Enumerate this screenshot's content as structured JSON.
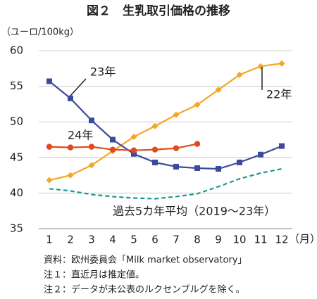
{
  "chart_data": {
    "type": "line",
    "title": "図２　生乳取引価格の推移",
    "y_label": "（ユーロ/100kg）",
    "x_label": "（月）",
    "categories": [
      "1",
      "2",
      "3",
      "4",
      "5",
      "6",
      "7",
      "8",
      "9",
      "10",
      "11",
      "12"
    ],
    "series": [
      {
        "name": "22年",
        "color": "#f5a623",
        "marker": "diamond",
        "dashed": false,
        "values": [
          41.8,
          42.5,
          43.9,
          45.9,
          47.9,
          49.4,
          51.0,
          52.4,
          54.5,
          56.6,
          57.8,
          58.2
        ]
      },
      {
        "name": "23年",
        "color": "#3a4a9c",
        "marker": "square",
        "dashed": false,
        "values": [
          55.7,
          53.3,
          50.2,
          47.5,
          45.5,
          44.3,
          43.7,
          43.5,
          43.4,
          44.3,
          45.4,
          46.6
        ]
      },
      {
        "name": "24年",
        "color": "#e04a1e",
        "marker": "circle",
        "dashed": false,
        "values": [
          46.5,
          46.4,
          46.5,
          46.1,
          46.0,
          46.1,
          46.3,
          46.9,
          null,
          null,
          null,
          null
        ]
      },
      {
        "name": "過去5カ年平均（2019～23年）",
        "color": "#17968f",
        "marker": "none",
        "dashed": true,
        "values": [
          40.6,
          40.3,
          39.8,
          39.5,
          39.3,
          39.2,
          39.5,
          39.9,
          40.9,
          42.0,
          42.8,
          43.4
        ]
      }
    ],
    "ylim": [
      35,
      60
    ],
    "yticks": [
      35,
      40,
      45,
      50,
      55,
      60
    ],
    "grid": true,
    "notes": [
      "資料：欧州委員会「Milk market observatory」",
      "注１：直近月は推定値。",
      "注２：データが未公表のルクセンブルグを除く。"
    ]
  }
}
